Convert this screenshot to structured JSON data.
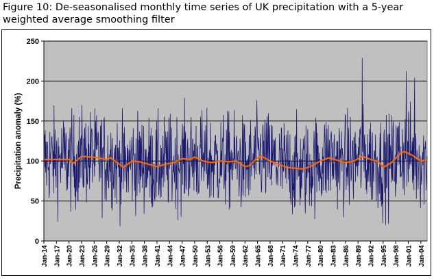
{
  "title": "Figure 10: De-seasonalised monthly time series of UK precipitation with a 5-year weighted average smoothing filter",
  "chart_data": {
    "type": "line",
    "title": "Figure 10: De-seasonalised monthly time series of UK precipitation with a 5-year weighted average smoothing filter",
    "xlabel": "",
    "ylabel": "Precipitation anomaly (%)",
    "ylim": [
      0,
      250
    ],
    "yticks": [
      "0",
      "50",
      "100",
      "150",
      "200",
      "250"
    ],
    "xlim": [
      "Jan-14",
      "Jul-05"
    ],
    "xticks": [
      "Jan-14",
      "Jan-17",
      "Jan-20",
      "Jan-23",
      "Jan-26",
      "Jan-29",
      "Jan-32",
      "Jan-35",
      "Jan-38",
      "Jan-41",
      "Jan-44",
      "Jan-47",
      "Jan-50",
      "Jan-53",
      "Jan-56",
      "Jan-59",
      "Jan-62",
      "Jan-65",
      "Jan-68",
      "Jan-71",
      "Jan-74",
      "Jan-77",
      "Jan-80",
      "Jan-83",
      "Jan-86",
      "Jan-89",
      "Jan-92",
      "Jan-95",
      "Jan-98",
      "Jan-01",
      "Jan-04"
    ],
    "grid": true,
    "background_color": "#c0c0c0",
    "series": [
      {
        "name": "",
        "kind": "monthly",
        "color": "#1a1a6e",
        "note_range": "monthly values from Jan-14 to Jul-05, approximately 1100 points oscillating between about 10 and 230",
        "values_summary": {
          "min": 10,
          "max": 229,
          "mean": 100
        }
      },
      {
        "name": "",
        "kind": "smoothed",
        "color": "#ff6600",
        "x": [
          "Jan-14",
          "Jan-17",
          "Jan-20",
          "Jan-21",
          "Jan-23",
          "Jan-25",
          "Jan-27",
          "Jan-29",
          "Jan-30",
          "Jan-31",
          "Jan-33",
          "Jan-35",
          "Jan-37",
          "Jan-39",
          "Jan-41",
          "Jan-43",
          "Jan-45",
          "Jan-47",
          "Jan-49",
          "Jan-50",
          "Jan-52",
          "Jan-54",
          "Jan-56",
          "Jan-58",
          "Jan-60",
          "Jan-62",
          "Jan-63",
          "Jan-65",
          "Jan-66",
          "Jan-68",
          "Jan-70",
          "Jan-72",
          "Jan-74",
          "Jan-76",
          "Jan-78",
          "Jan-80",
          "Jan-82",
          "Jan-84",
          "Jan-86",
          "Jan-88",
          "Jan-90",
          "Jan-92",
          "Jan-94",
          "Jan-95",
          "Jan-97",
          "Jan-99",
          "Jan-00",
          "Jan-02",
          "Jan-04",
          "Jul-05"
        ],
        "values": [
          102,
          102,
          102,
          97,
          106,
          105,
          104,
          102,
          104,
          100,
          92,
          100,
          99,
          96,
          93,
          96,
          98,
          103,
          102,
          105,
          100,
          98,
          100,
          99,
          100,
          93,
          94,
          104,
          106,
          100,
          96,
          92,
          91,
          90,
          94,
          100,
          104,
          101,
          98,
          100,
          106,
          102,
          99,
          92,
          98,
          109,
          112,
          107,
          100,
          101
        ]
      }
    ]
  }
}
